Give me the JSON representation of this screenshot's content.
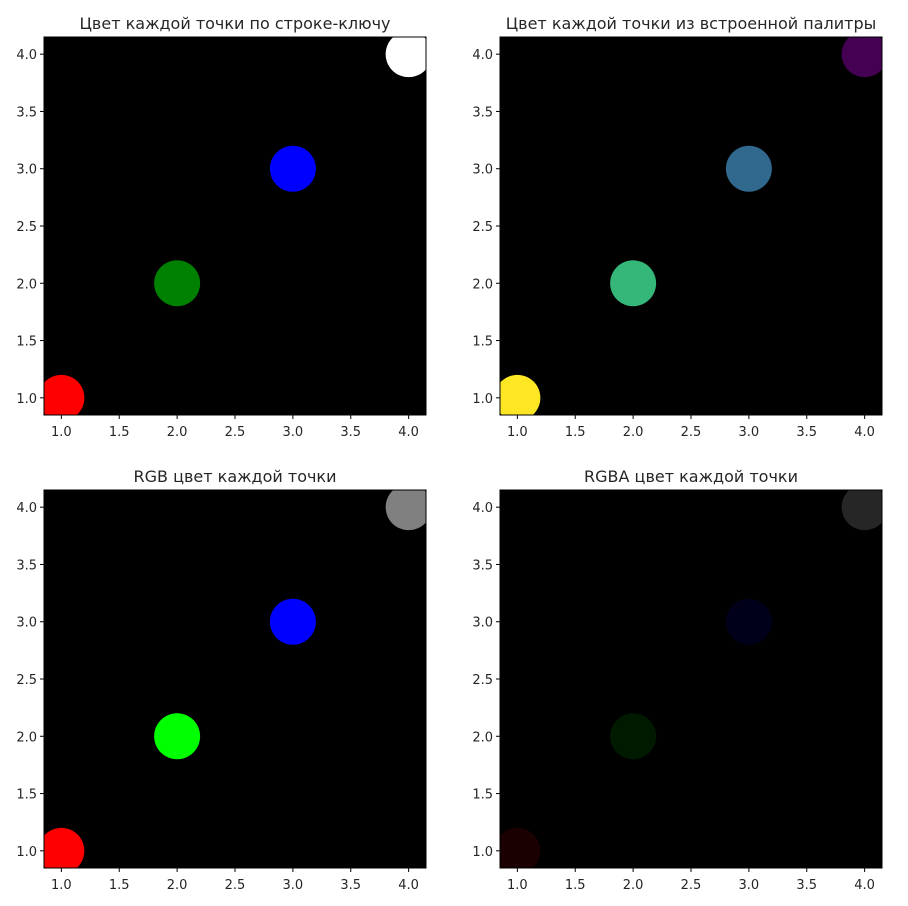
{
  "chart_data": [
    {
      "type": "scatter",
      "title": "Цвет каждой точки по строке-ключу",
      "x": [
        1,
        2,
        3,
        4
      ],
      "y": [
        1,
        2,
        3,
        4
      ],
      "point_colors": [
        "#ff0000",
        "#008000",
        "#0000ff",
        "#ffffff"
      ],
      "xlim": [
        0.85,
        4.15
      ],
      "ylim": [
        0.85,
        4.15
      ],
      "xticks": [
        "1.0",
        "1.5",
        "2.0",
        "2.5",
        "3.0",
        "3.5",
        "4.0"
      ],
      "yticks": [
        "1.0",
        "1.5",
        "2.0",
        "2.5",
        "3.0",
        "3.5",
        "4.0"
      ],
      "background": "#000000",
      "grid": false
    },
    {
      "type": "scatter",
      "title": "Цвет каждой точки из встроенной палитры",
      "x": [
        1,
        2,
        3,
        4
      ],
      "y": [
        1,
        2,
        3,
        4
      ],
      "point_colors": [
        "#fde725",
        "#35b779",
        "#31688e",
        "#440154"
      ],
      "xlim": [
        0.85,
        4.15
      ],
      "ylim": [
        0.85,
        4.15
      ],
      "xticks": [
        "1.0",
        "1.5",
        "2.0",
        "2.5",
        "3.0",
        "3.5",
        "4.0"
      ],
      "yticks": [
        "1.0",
        "1.5",
        "2.0",
        "2.5",
        "3.0",
        "3.5",
        "4.0"
      ],
      "background": "#000000",
      "grid": false
    },
    {
      "type": "scatter",
      "title": "RGB цвет каждой точки",
      "x": [
        1,
        2,
        3,
        4
      ],
      "y": [
        1,
        2,
        3,
        4
      ],
      "point_colors": [
        "#ff0000",
        "#00ff00",
        "#0000ff",
        "#808080"
      ],
      "xlim": [
        0.85,
        4.15
      ],
      "ylim": [
        0.85,
        4.15
      ],
      "xticks": [
        "1.0",
        "1.5",
        "2.0",
        "2.5",
        "3.0",
        "3.5",
        "4.0"
      ],
      "yticks": [
        "1.0",
        "1.5",
        "2.0",
        "2.5",
        "3.0",
        "3.5",
        "4.0"
      ],
      "background": "#000000",
      "grid": false
    },
    {
      "type": "scatter",
      "title": "RGBA цвет каждой точки",
      "x": [
        1,
        2,
        3,
        4
      ],
      "y": [
        1,
        2,
        3,
        4
      ],
      "point_colors": [
        "#ff0000",
        "#00ff00",
        "#0000ff",
        "#ffffff"
      ],
      "point_alpha": [
        0.1,
        0.1,
        0.1,
        0.15
      ],
      "xlim": [
        0.85,
        4.15
      ],
      "ylim": [
        0.85,
        4.15
      ],
      "xticks": [
        "1.0",
        "1.5",
        "2.0",
        "2.5",
        "3.0",
        "3.5",
        "4.0"
      ],
      "yticks": [
        "1.0",
        "1.5",
        "2.0",
        "2.5",
        "3.0",
        "3.5",
        "4.0"
      ],
      "background": "#000000",
      "grid": false
    }
  ]
}
